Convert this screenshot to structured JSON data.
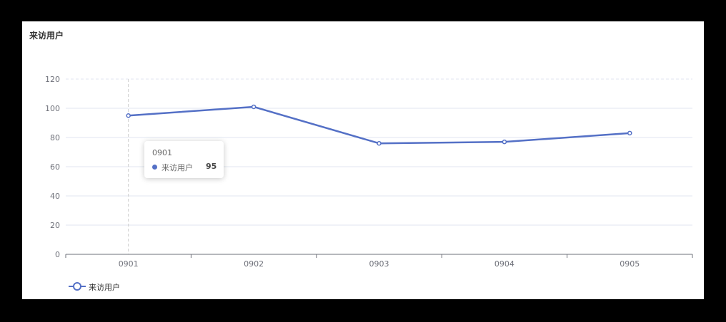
{
  "title": "来访用户",
  "chart_data": {
    "type": "line",
    "categories": [
      "0901",
      "0902",
      "0903",
      "0904",
      "0905"
    ],
    "series": [
      {
        "name": "来访用户",
        "values": [
          95,
          101,
          76,
          77,
          83
        ]
      }
    ],
    "ylim": [
      0,
      120
    ],
    "yticks": [
      0,
      20,
      40,
      60,
      80,
      100,
      120
    ],
    "grid": true,
    "legend_position": "bottom-left",
    "color": "#5470c6"
  },
  "tooltip": {
    "title": "0901",
    "series_name": "来访用户",
    "value": "95"
  },
  "legend": {
    "label": "来访用户"
  }
}
